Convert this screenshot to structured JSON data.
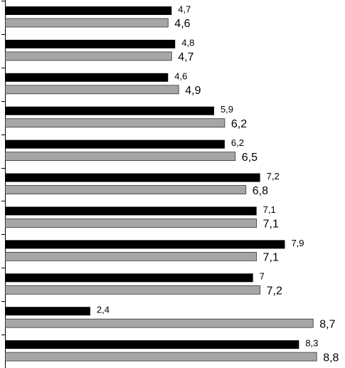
{
  "chart_data": {
    "type": "hbar",
    "categories": [
      null,
      null,
      null,
      null,
      null,
      null,
      null,
      null,
      null,
      null,
      null
    ],
    "series": [
      {
        "color": "#000000",
        "values": [
          4.7,
          4.8,
          4.6,
          5.9,
          6.2,
          7.2,
          7.1,
          7.9,
          7,
          2.4,
          8.3
        ],
        "value_labels": [
          "4,7",
          "4,8",
          "4,6",
          "5,9",
          "6,2",
          "7,2",
          "7,1",
          "7,9",
          "7",
          "2,4",
          "8,3"
        ]
      },
      {
        "color": "#a6a6a6",
        "values": [
          4.6,
          4.7,
          4.9,
          6.2,
          6.5,
          6.8,
          7.1,
          7.1,
          7.2,
          8.7,
          8.8
        ],
        "value_labels": [
          "4,6",
          "4,7",
          "4,9",
          "6,2",
          "6,5",
          "6,8",
          "7,1",
          "7,1",
          "7,2",
          "8,7",
          "8,8"
        ]
      }
    ],
    "xlim": [
      0,
      9.6
    ]
  }
}
